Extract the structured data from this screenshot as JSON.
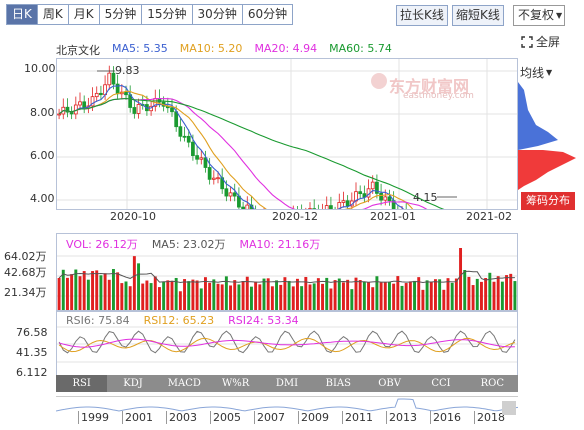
{
  "tabs": [
    {
      "label": "日K",
      "active": true
    },
    {
      "label": "周K",
      "active": false
    },
    {
      "label": "月K",
      "active": false
    },
    {
      "label": "5分钟",
      "active": false
    },
    {
      "label": "15分钟",
      "active": false
    },
    {
      "label": "30分钟",
      "active": false
    },
    {
      "label": "60分钟",
      "active": false
    }
  ],
  "toolbar": {
    "stretch": "拉长K线",
    "shrink": "缩短K线",
    "adjust": "不复权",
    "fullscreen": "全屏"
  },
  "stock": {
    "name": "北京文化",
    "ma": [
      {
        "label": "MA5: 5.35",
        "color": "#3a5fd0"
      },
      {
        "label": "MA10: 5.20",
        "color": "#e0a020"
      },
      {
        "label": "MA20: 4.94",
        "color": "#e030e0"
      },
      {
        "label": "MA60: 5.74",
        "color": "#1a9a30"
      }
    ]
  },
  "price_axis": [
    "10.00",
    "8.00",
    "6.00",
    "4.00"
  ],
  "date_axis": [
    "2020-10",
    "2020-12",
    "2021-01",
    "2021-02"
  ],
  "annotations": {
    "high": "9.83",
    "low": "4.15"
  },
  "watermark": {
    "cn": "东方财富网",
    "en": "eastmoney.com"
  },
  "side": {
    "ma_label": "均线",
    "chip_label": "筹码分布"
  },
  "volume": {
    "legend": [
      {
        "label": "VOL: 26.12万",
        "color": "#e030e0"
      },
      {
        "label": "MA5: 23.02万",
        "color": "#555555"
      },
      {
        "label": "MA10: 21.16万",
        "color": "#e030e0"
      }
    ],
    "axis": [
      "64.02万",
      "42.68万",
      "21.34万"
    ]
  },
  "rsi": {
    "legend": [
      {
        "label": "RSI6: 75.84",
        "color": "#777777"
      },
      {
        "label": "RSI12: 65.23",
        "color": "#e0a020"
      },
      {
        "label": "RSI24: 53.34",
        "color": "#e030e0"
      }
    ],
    "axis": [
      "76.58",
      "41.35",
      "6.112"
    ]
  },
  "indicator_tabs": [
    {
      "label": "RSI",
      "active": true
    },
    {
      "label": "KDJ",
      "active": false
    },
    {
      "label": "MACD",
      "active": false
    },
    {
      "label": "W%R",
      "active": false
    },
    {
      "label": "DMI",
      "active": false
    },
    {
      "label": "BIAS",
      "active": false
    },
    {
      "label": "OBV",
      "active": false
    },
    {
      "label": "CCI",
      "active": false
    },
    {
      "label": "ROC",
      "active": false
    }
  ],
  "timeline_years": [
    "1999",
    "2001",
    "2003",
    "2005",
    "2007",
    "2009",
    "2011",
    "2013",
    "2016",
    "2018"
  ],
  "colors": {
    "up": "#e02020",
    "down": "#1a9a30",
    "accent": "#5a74a8"
  }
}
